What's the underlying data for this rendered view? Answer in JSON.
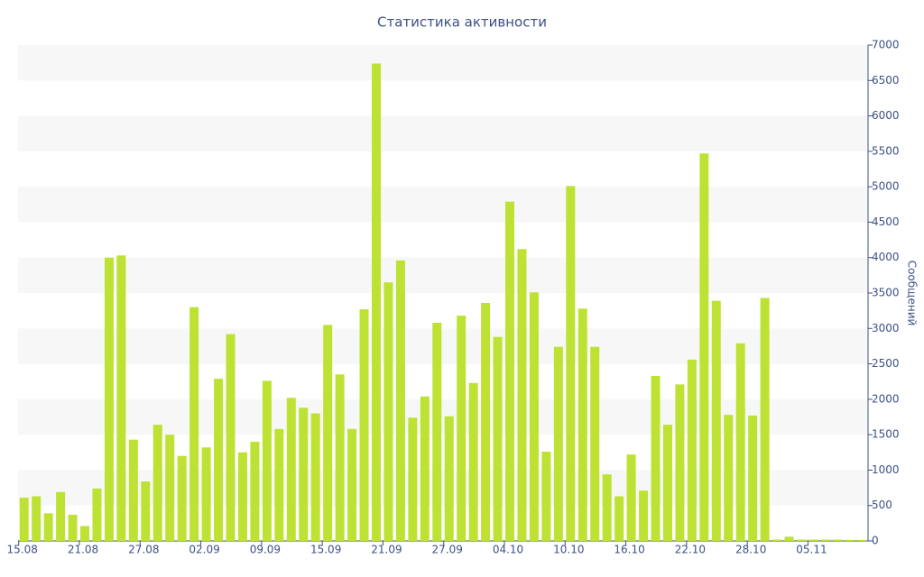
{
  "chart_data": {
    "type": "bar",
    "title": "Статистика активности",
    "y_axis_label": "Сообщений",
    "categories": [
      "15.08",
      null,
      null,
      null,
      null,
      "21.08",
      null,
      null,
      null,
      null,
      "27.08",
      null,
      null,
      null,
      null,
      "02.09",
      null,
      null,
      null,
      null,
      "09.09",
      null,
      null,
      null,
      null,
      "15.09",
      null,
      null,
      null,
      null,
      "21.09",
      null,
      null,
      null,
      null,
      "27.09",
      null,
      null,
      null,
      null,
      "04.10",
      null,
      null,
      null,
      null,
      "10.10",
      null,
      null,
      null,
      null,
      "16.10",
      null,
      null,
      null,
      null,
      "22.10",
      null,
      null,
      null,
      null,
      "28.10",
      null,
      null,
      null,
      null,
      "05.11",
      null,
      null,
      null,
      null
    ],
    "values": [
      610,
      630,
      390,
      690,
      370,
      210,
      740,
      4000,
      4030,
      1430,
      840,
      1640,
      1500,
      1200,
      3300,
      1320,
      2290,
      2920,
      1250,
      1400,
      2260,
      1580,
      2020,
      1880,
      1800,
      3050,
      2350,
      1580,
      3270,
      6740,
      3650,
      3960,
      1740,
      2040,
      3080,
      1760,
      3180,
      2230,
      3360,
      2880,
      4790,
      4120,
      3510,
      1260,
      2740,
      5010,
      3280,
      2740,
      940,
      630,
      1220,
      710,
      2330,
      1640,
      2210,
      2560,
      5470,
      3390,
      1780,
      2790,
      1770,
      3430,
      20,
      60,
      20,
      20,
      20,
      20,
      15,
      15
    ],
    "color": "#bde233",
    "ylim": [
      0,
      7000
    ],
    "yticks": [
      0,
      500,
      1000,
      1500,
      2000,
      2500,
      3000,
      3500,
      4000,
      4500,
      5000,
      5500,
      6000,
      6500,
      7000
    ],
    "grid": "bands"
  }
}
